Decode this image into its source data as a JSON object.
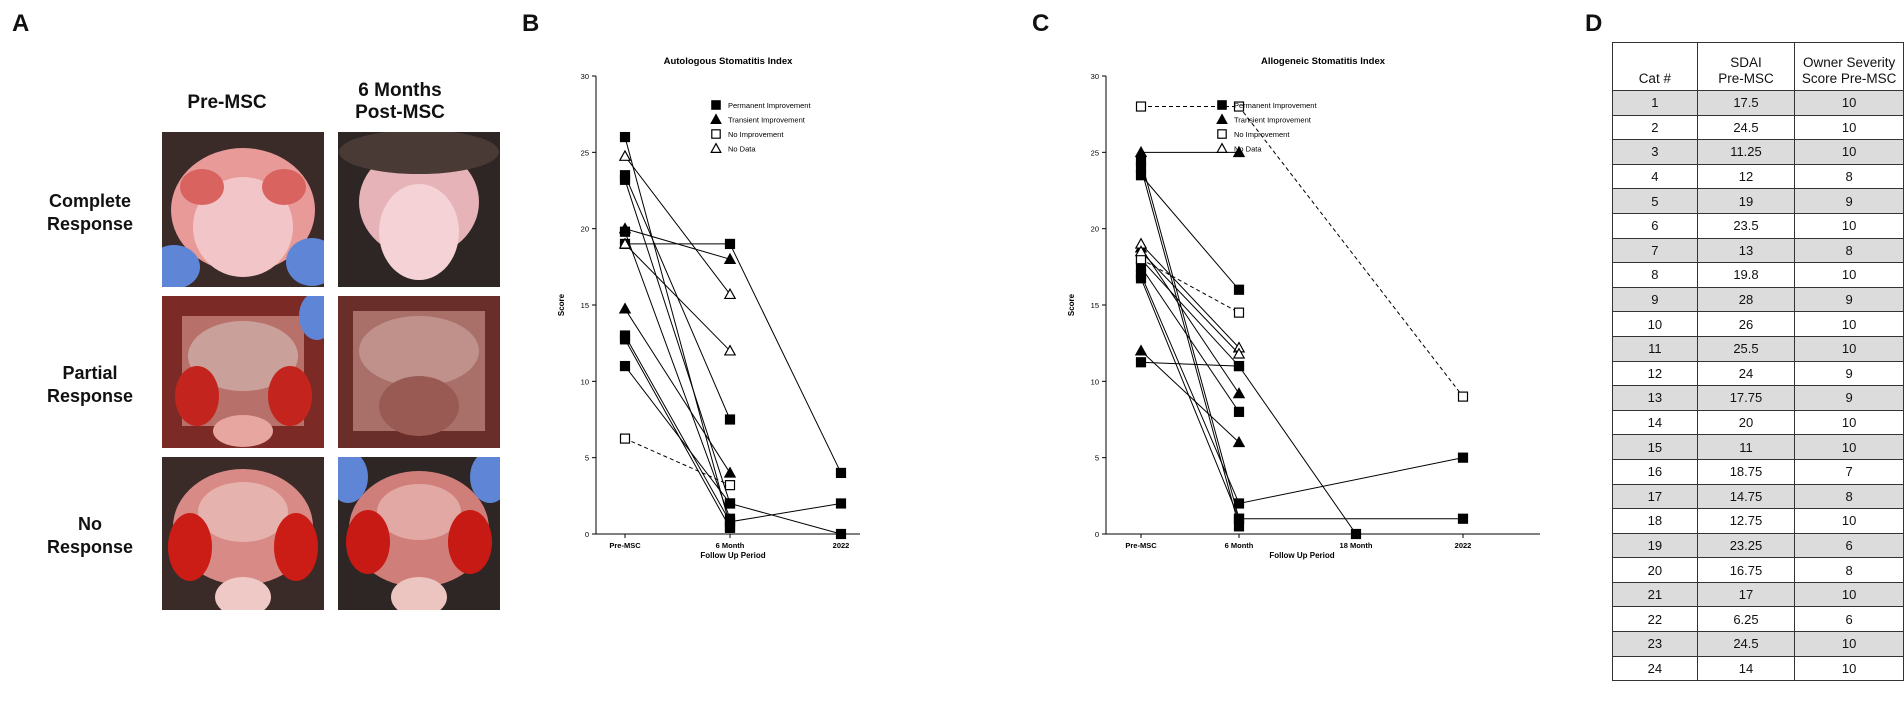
{
  "panels": {
    "a": "A",
    "b": "B",
    "c": "C",
    "d": "D"
  },
  "panel_a": {
    "col_headers": [
      "Pre-MSC",
      "6 Months\nPost-MSC"
    ],
    "row_labels": [
      "Complete\nResponse",
      "Partial\nResponse",
      "No\nResponse"
    ]
  },
  "chart_data": [
    {
      "type": "line",
      "title": "Autologous Stomatitis Index",
      "xlabel": "Follow Up Period",
      "ylabel": "Score",
      "categories": [
        "Pre-MSC",
        "6 Month",
        "2022"
      ],
      "ylim": [
        0,
        30
      ],
      "yticks": [
        "0",
        "5",
        "10",
        "15",
        "20",
        "25",
        "30"
      ],
      "legend": {
        "position": "top-right",
        "entries": [
          {
            "label": "Permanent Improvement",
            "marker": "filled-square",
            "line": "solid"
          },
          {
            "label": "Transient Improvement",
            "marker": "filled-triangle",
            "line": "solid"
          },
          {
            "label": "No Improvement",
            "marker": "open-square",
            "line": "dashed"
          },
          {
            "label": "No Data",
            "marker": "open-triangle",
            "line": "solid"
          }
        ]
      },
      "series": [
        {
          "group": "permanent",
          "points": [
            [
              0,
              26
            ],
            [
              1,
              0.5
            ]
          ]
        },
        {
          "group": "permanent",
          "points": [
            [
              0,
              23.5
            ],
            [
              1,
              7.5
            ]
          ]
        },
        {
          "group": "permanent",
          "points": [
            [
              0,
              23.2
            ],
            [
              1,
              2
            ]
          ]
        },
        {
          "group": "permanent",
          "points": [
            [
              0,
              19.8
            ],
            [
              1,
              1
            ]
          ]
        },
        {
          "group": "permanent",
          "points": [
            [
              0,
              19
            ],
            [
              1,
              19
            ],
            [
              2,
              4
            ]
          ]
        },
        {
          "group": "permanent",
          "points": [
            [
              0,
              13
            ],
            [
              1,
              0.8
            ],
            [
              2,
              2
            ]
          ]
        },
        {
          "group": "permanent",
          "points": [
            [
              0,
              12.75
            ],
            [
              1,
              0.4
            ]
          ]
        },
        {
          "group": "permanent",
          "points": [
            [
              0,
              11
            ],
            [
              1,
              2
            ],
            [
              2,
              0
            ]
          ]
        },
        {
          "group": "transient",
          "points": [
            [
              0,
              20
            ],
            [
              1,
              18
            ]
          ]
        },
        {
          "group": "transient",
          "points": [
            [
              0,
              14.75
            ],
            [
              1,
              4
            ]
          ]
        },
        {
          "group": "none",
          "points": [
            [
              0,
              6.25
            ],
            [
              1,
              3.2
            ]
          ]
        },
        {
          "group": "nodata",
          "points": [
            [
              0,
              24.75
            ],
            [
              1,
              15.7
            ]
          ]
        },
        {
          "group": "nodata",
          "points": [
            [
              0,
              19
            ],
            [
              1,
              12
            ]
          ]
        }
      ]
    },
    {
      "type": "line",
      "title": "Allogeneic Stomatitis Index",
      "xlabel": "Follow Up Period",
      "ylabel": "Score",
      "categories": [
        "Pre-MSC",
        "6 Month",
        "18 Month",
        "2022"
      ],
      "ylim": [
        0,
        30
      ],
      "yticks": [
        "0",
        "5",
        "10",
        "15",
        "20",
        "25",
        "30"
      ],
      "legend": {
        "position": "top-right",
        "entries": [
          {
            "label": "Permanent Improvement",
            "marker": "filled-square",
            "line": "solid"
          },
          {
            "label": "Transient Improvement",
            "marker": "filled-triangle",
            "line": "solid"
          },
          {
            "label": "No Improvement",
            "marker": "open-square",
            "line": "dashed"
          },
          {
            "label": "No Data",
            "marker": "open-triangle",
            "line": "solid"
          }
        ]
      },
      "series": [
        {
          "group": "permanent",
          "points": [
            [
              0,
              24.5
            ],
            [
              1,
              1
            ]
          ]
        },
        {
          "group": "permanent",
          "points": [
            [
              0,
              24
            ],
            [
              1,
              0.5
            ]
          ]
        },
        {
          "group": "permanent",
          "points": [
            [
              0,
              23.5
            ],
            [
              1,
              16
            ]
          ]
        },
        {
          "group": "permanent",
          "points": [
            [
              0,
              18
            ],
            [
              1,
              11
            ]
          ]
        },
        {
          "group": "permanent",
          "points": [
            [
              0,
              17.5
            ],
            [
              1,
              8
            ]
          ]
        },
        {
          "group": "permanent",
          "points": [
            [
              0,
              17
            ],
            [
              1,
              2
            ],
            [
              3,
              5
            ]
          ]
        },
        {
          "group": "permanent",
          "points": [
            [
              0,
              16.75
            ],
            [
              1,
              1
            ],
            [
              3,
              1
            ]
          ]
        },
        {
          "group": "permanent",
          "points": [
            [
              0,
              11.25
            ],
            [
              1,
              11
            ],
            [
              2,
              0
            ]
          ]
        },
        {
          "group": "transient",
          "points": [
            [
              0,
              25
            ],
            [
              1,
              25
            ]
          ]
        },
        {
          "group": "transient",
          "points": [
            [
              0,
              18.75
            ],
            [
              1,
              9.2
            ]
          ]
        },
        {
          "group": "transient",
          "points": [
            [
              0,
              12
            ],
            [
              1,
              6
            ]
          ]
        },
        {
          "group": "none",
          "points": [
            [
              0,
              28
            ],
            [
              1,
              28
            ],
            [
              3,
              9
            ]
          ]
        },
        {
          "group": "none",
          "points": [
            [
              0,
              18
            ],
            [
              1,
              14.5
            ]
          ]
        },
        {
          "group": "nodata",
          "points": [
            [
              0,
              19
            ],
            [
              1,
              12.2
            ]
          ]
        },
        {
          "group": "nodata",
          "points": [
            [
              0,
              18.5
            ],
            [
              1,
              11.8
            ]
          ]
        }
      ]
    }
  ],
  "table": {
    "headers": [
      "Cat #",
      "SDAI\nPre-MSC",
      "Owner Severity\nScore Pre-MSC"
    ],
    "rows": [
      [
        "1",
        "17.5",
        "10"
      ],
      [
        "2",
        "24.5",
        "10"
      ],
      [
        "3",
        "11.25",
        "10"
      ],
      [
        "4",
        "12",
        "8"
      ],
      [
        "5",
        "19",
        "9"
      ],
      [
        "6",
        "23.5",
        "10"
      ],
      [
        "7",
        "13",
        "8"
      ],
      [
        "8",
        "19.8",
        "10"
      ],
      [
        "9",
        "28",
        "9"
      ],
      [
        "10",
        "26",
        "10"
      ],
      [
        "11",
        "25.5",
        "10"
      ],
      [
        "12",
        "24",
        "9"
      ],
      [
        "13",
        "17.75",
        "9"
      ],
      [
        "14",
        "20",
        "10"
      ],
      [
        "15",
        "11",
        "10"
      ],
      [
        "16",
        "18.75",
        "7"
      ],
      [
        "17",
        "14.75",
        "8"
      ],
      [
        "18",
        "12.75",
        "10"
      ],
      [
        "19",
        "23.25",
        "6"
      ],
      [
        "20",
        "16.75",
        "8"
      ],
      [
        "21",
        "17",
        "10"
      ],
      [
        "22",
        "6.25",
        "6"
      ],
      [
        "23",
        "24.5",
        "10"
      ],
      [
        "24",
        "14",
        "10"
      ]
    ]
  }
}
